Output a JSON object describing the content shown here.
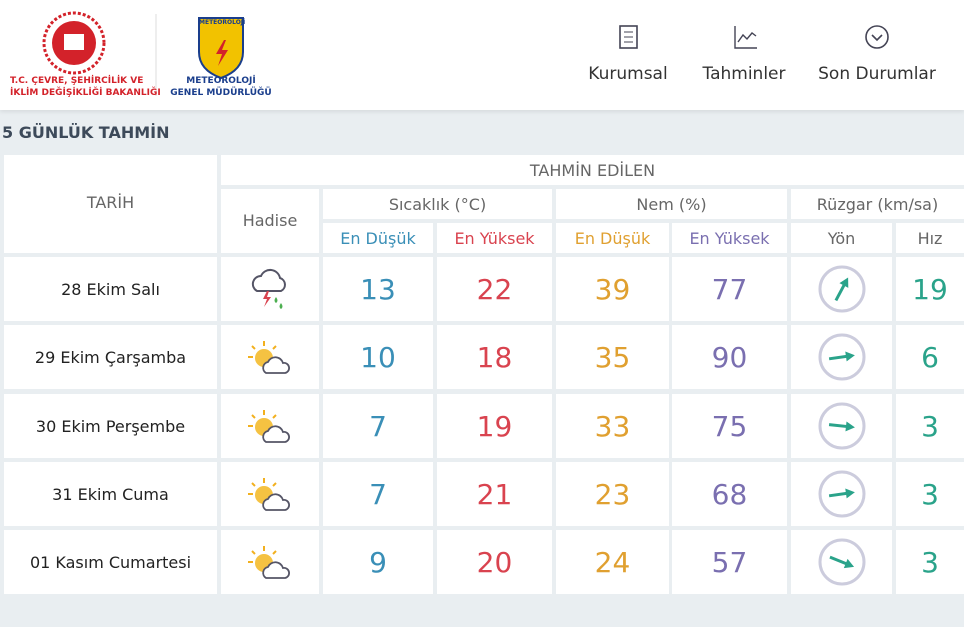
{
  "header": {
    "ministry": [
      "T.C. ÇEVRE, ŞEHİRCİLİK VE",
      "İKLİM DEĞİŞİKLİĞİ BAKANLIĞI"
    ],
    "logo_text": "METEOROLOJİ",
    "agency": [
      "METEOROLOJİ",
      "GENEL MÜDÜRLÜĞÜ"
    ],
    "nav": [
      "Kurumsal",
      "Tahminler",
      "Son Durumlar"
    ]
  },
  "section_title": "5 GÜNLÜK TAHMİN",
  "table": {
    "date_header": "TARİH",
    "forecast_header": "TAHMİN EDİLEN",
    "event_header": "Hadise",
    "groups": [
      "Sıcaklık (°C)",
      "Nem (%)",
      "Rüzgar (km/sa)"
    ],
    "subheaders": [
      "En Düşük",
      "En Yüksek",
      "En Düşük",
      "En Yüksek",
      "Yön",
      "Hız"
    ],
    "rows": [
      [
        "28 Ekim Salı",
        13,
        22,
        39,
        77,
        19
      ],
      [
        "29 Ekim Çarşamba",
        10,
        18,
        35,
        90,
        6
      ],
      [
        "30 Ekim Perşembe",
        7,
        19,
        33,
        75,
        3
      ],
      [
        "31 Ekim Cuma",
        7,
        21,
        23,
        68,
        3
      ],
      [
        "01 Kasım Cumartesi",
        9,
        20,
        24,
        57,
        3
      ]
    ]
  }
}
